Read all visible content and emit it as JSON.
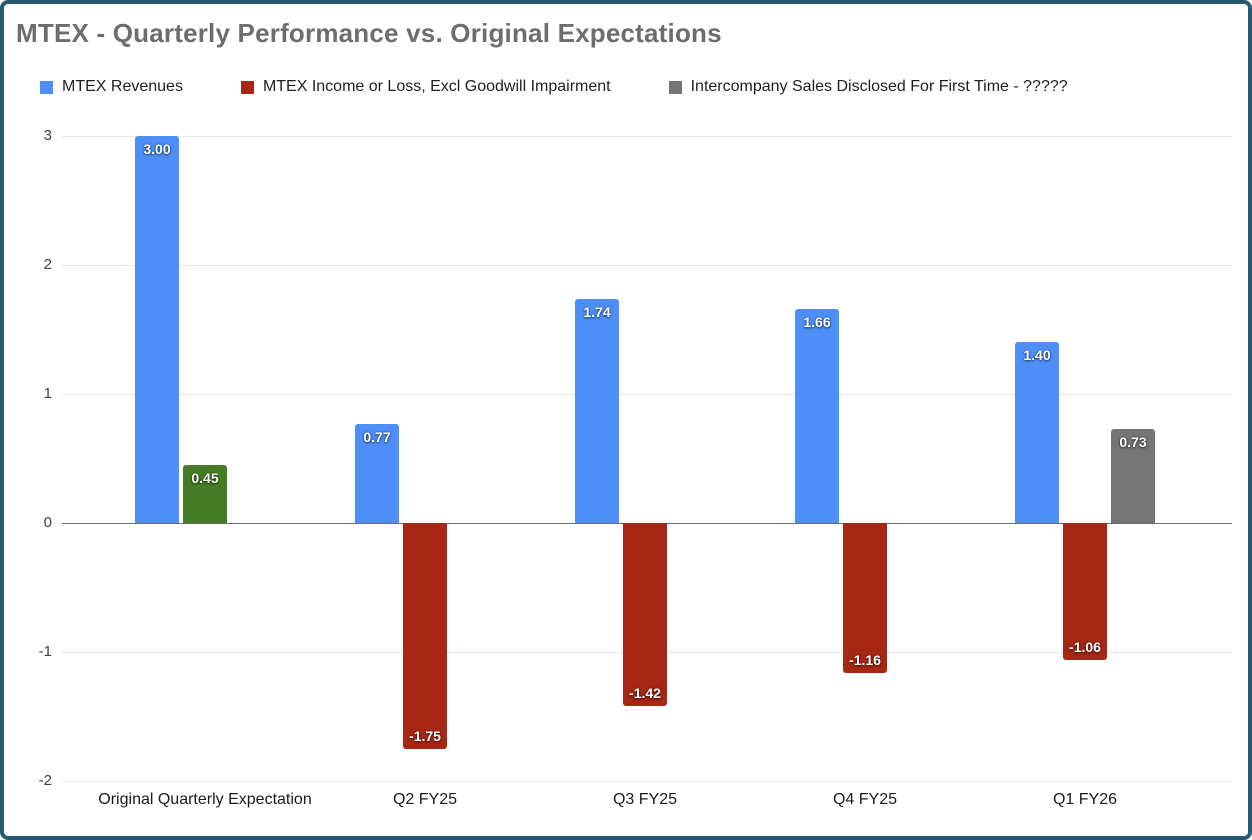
{
  "title": "MTEX - Quarterly Performance vs. Original Expectations",
  "legend": [
    {
      "label": "MTEX Revenues",
      "color": "#4d8ef7"
    },
    {
      "label": "MTEX Income or Loss, Excl Goodwill Impairment",
      "color": "#a52714"
    },
    {
      "label": "Intercompany Sales Disclosed For First Time - ?????",
      "color": "#757575"
    }
  ],
  "chart_data": {
    "type": "bar",
    "title": "MTEX - Quarterly Performance vs. Original Expectations",
    "categories": [
      "Original Quarterly Expectation",
      "Q2 FY25",
      "Q3 FY25",
      "Q4 FY25",
      "Q1 FY26"
    ],
    "series": [
      {
        "name": "MTEX Revenues",
        "color": "#4d8ef7",
        "values": [
          3.0,
          0.77,
          1.74,
          1.66,
          1.4
        ]
      },
      {
        "name": "MTEX Income or Loss, Excl Goodwill Impairment",
        "color": "#a52714",
        "values": [
          0.45,
          -1.75,
          -1.42,
          -1.16,
          -1.06
        ],
        "point_colors": [
          "#447d25",
          null,
          null,
          null,
          null
        ]
      },
      {
        "name": "Intercompany Sales Disclosed For First Time - ?????",
        "color": "#757575",
        "values": [
          null,
          null,
          null,
          null,
          0.73
        ]
      }
    ],
    "value_labels": [
      "3.00",
      "0.45",
      "0.77",
      "-1.75",
      "1.74",
      "-1.42",
      "1.66",
      "-1.16",
      "1.40",
      "-1.06",
      "0.73"
    ],
    "ylim": [
      -2,
      3
    ],
    "yticks": [
      3,
      2,
      1,
      0,
      -1,
      -2
    ],
    "grid": true,
    "legend_position": "top",
    "colors": {
      "frame_border": "#265a71",
      "grid": "#e6e6e6",
      "zero_line": "#6b6b6b",
      "background": "#ffffff"
    }
  }
}
